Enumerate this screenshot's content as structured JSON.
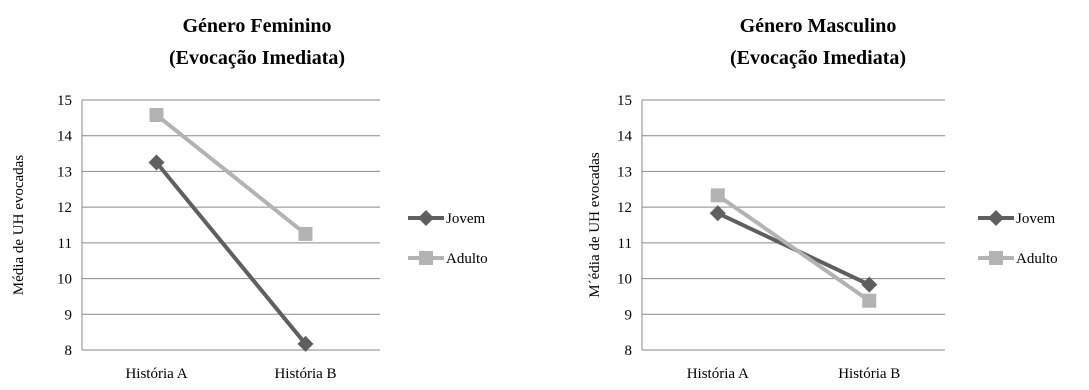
{
  "chart_data": [
    {
      "type": "line",
      "title_lines": [
        "Género Feminino",
        "(Evocação Imediata)"
      ],
      "xlabel": "",
      "ylabel": "Média de UH  evocadas",
      "categories": [
        "História A",
        "História B"
      ],
      "ylim": [
        8,
        15
      ],
      "yticks": [
        8,
        9,
        10,
        11,
        12,
        13,
        14,
        15
      ],
      "grid": "horizontal",
      "legend": "right",
      "series": [
        {
          "name": "Jovem",
          "values": [
            13.25,
            8.17
          ],
          "color": "#5f5f5f",
          "marker": "diamond"
        },
        {
          "name": "Adulto",
          "values": [
            14.58,
            11.25
          ],
          "color": "#b3b3b3",
          "marker": "square"
        }
      ]
    },
    {
      "type": "line",
      "title_lines": [
        "Género Masculino",
        "(Evocação Imediata)"
      ],
      "xlabel": "",
      "ylabel": "M´édia de UH  evocadas",
      "categories": [
        "História A",
        "História B"
      ],
      "ylim": [
        8,
        15
      ],
      "yticks": [
        8,
        9,
        10,
        11,
        12,
        13,
        14,
        15
      ],
      "grid": "horizontal",
      "legend": "right",
      "series": [
        {
          "name": "Jovem",
          "values": [
            11.83,
            9.83
          ],
          "color": "#5f5f5f",
          "marker": "diamond"
        },
        {
          "name": "Adulto",
          "values": [
            12.33,
            9.38
          ],
          "color": "#b3b3b3",
          "marker": "square"
        }
      ]
    }
  ]
}
